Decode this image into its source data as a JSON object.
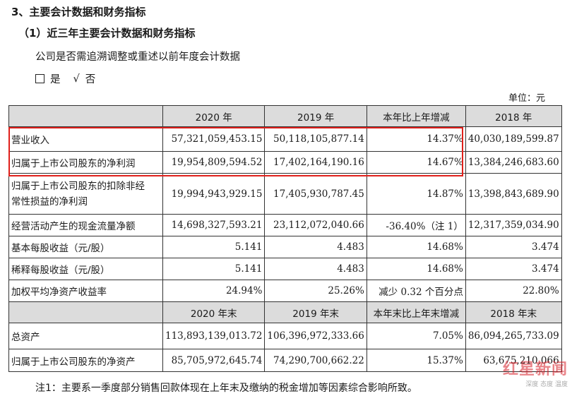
{
  "section_title": "3、主要会计数据和财务指标",
  "subsection_title": "（1）近三年主要会计数据和财务指标",
  "question": "公司是否需追溯调整或重述以前年度会计数据",
  "answer": {
    "yes_label": "是",
    "check_mark": "√",
    "no_label": "否"
  },
  "unit": "单位：元",
  "table": {
    "header1": [
      "2020 年",
      "2019 年",
      "本年比上年增减",
      "2018 年"
    ],
    "rows1": [
      {
        "label": "营业收入",
        "c2020": "57,321,059,453.15",
        "c2019": "50,118,105,877.14",
        "change": "14.37%",
        "c2018": "40,030,189,599.87"
      },
      {
        "label": "归属于上市公司股东的净利润",
        "c2020": "19,954,809,594.52",
        "c2019": "17,402,164,190.16",
        "change": "14.67%",
        "c2018": "13,384,246,683.60"
      },
      {
        "label_line1": "归属于上市公司股东的扣除非经",
        "label_line2": "常性损益的净利润",
        "c2020": "19,994,943,929.15",
        "c2019": "17,405,930,787.45",
        "change": "14.87%",
        "c2018": "13,398,843,689.90"
      },
      {
        "label": "经营活动产生的现金流量净额",
        "c2020": "14,698,327,593.21",
        "c2019": "23,112,072,040.66",
        "change": "-36.40%（注 1）",
        "c2018": "12,317,359,034.90"
      },
      {
        "label": "基本每股收益（元/股）",
        "c2020": "5.141",
        "c2019": "4.483",
        "change": "14.68%",
        "c2018": "3.474"
      },
      {
        "label": "稀释每股收益（元/股）",
        "c2020": "5.141",
        "c2019": "4.483",
        "change": "14.68%",
        "c2018": "3.474"
      },
      {
        "label": "加权平均净资产收益率",
        "c2020": "24.94%",
        "c2019": "25.26%",
        "change": "减少 0.32 个百分点",
        "c2018": "22.80%"
      }
    ],
    "header2": [
      "2020 年末",
      "2019 年末",
      "本年末比上年末增减",
      "2018 年末"
    ],
    "rows2": [
      {
        "label": "总资产",
        "c2020": "113,893,139,013.72",
        "c2019": "106,396,972,333.66",
        "change": "7.05%",
        "c2018": "86,094,265,733.09"
      },
      {
        "label": "归属于上市公司股东的净资产",
        "c2020": "85,705,972,645.74",
        "c2019": "74,290,700,662.22",
        "change": "15.37%",
        "c2018": "63,675,210,066"
      }
    ]
  },
  "note": "注1：主要系一季度部分销售回款体现在上年末及缴纳的税金增加等因素综合影响所致。",
  "watermark": {
    "main": "红星新闻",
    "sub": "深度 态度 温度"
  },
  "colors": {
    "highlight": "#e0201b",
    "header_bg": "#dcdcdc"
  }
}
